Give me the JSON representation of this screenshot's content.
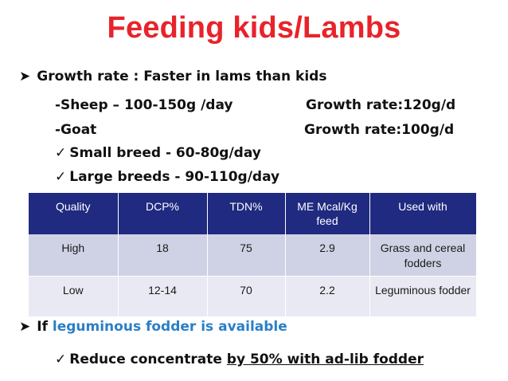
{
  "title": "Feeding kids/Lambs",
  "bullets": {
    "growth_rate": "Growth rate : Faster in lams than kids",
    "sheep_label": "-Sheep – 100-150g /day",
    "sheep_rate": "Growth rate:120g/d",
    "goat_label": "-Goat",
    "goat_rate": "Growth rate:100g/d",
    "small_breed": "Small breed - 60-80g/day",
    "large_breeds": "Large breeds - 90-110g/day",
    "leguminous_prefix": "If ",
    "leguminous_highlight": "leguminous fodder is available",
    "reduce_prefix": "Reduce concentrate ",
    "reduce_underlined": "by 50% with ad-lib fodder"
  },
  "colors": {
    "title": "#e8232a",
    "header_bg": "#1f2a80",
    "row1_bg": "#cfd2e4",
    "row2_bg": "#e8e9f2",
    "highlight": "#2a7fc6"
  },
  "table": {
    "headers": [
      "Quality",
      "DCP%",
      "TDN%",
      "ME Mcal/Kg feed",
      "Used with"
    ],
    "rows": [
      [
        "High",
        "18",
        "75",
        "2.9",
        "Grass and cereal fodders"
      ],
      [
        "Low",
        "12-14",
        "70",
        "2.2",
        "Leguminous fodder"
      ]
    ]
  }
}
